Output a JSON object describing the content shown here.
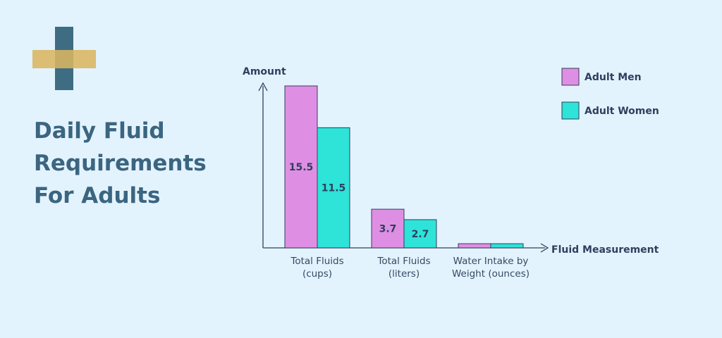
{
  "title_lines": [
    "Daily Fluid",
    "Requirements",
    "For Adults"
  ],
  "colors": {
    "background": "#e3f3fd",
    "title": "#3b6580",
    "logo_gold": "#d9b560",
    "logo_teal": "#3e6d83",
    "series_men": "#df8fe3",
    "series_women": "#2ee3d8",
    "axis": "#2f3f5e"
  },
  "logo_icon": "medical-cross-icon",
  "chart_data": {
    "type": "bar",
    "xlabel": "Fluid Measurement",
    "ylabel": "Amount",
    "categories": [
      [
        "Total Fluids",
        "(cups)"
      ],
      [
        "Total Fluids",
        "(liters)"
      ],
      [
        "Water Intake by",
        "Weight (ounces)"
      ]
    ],
    "series": [
      {
        "name": "Adult Men",
        "values": [
          15.5,
          3.7,
          0.4
        ],
        "labels": [
          "15.5",
          "3.7",
          ""
        ]
      },
      {
        "name": "Adult Women",
        "values": [
          11.5,
          2.7,
          0.4
        ],
        "labels": [
          "11.5",
          "2.7",
          ""
        ]
      }
    ],
    "ylim": [
      0,
      17.5
    ],
    "grid": false,
    "legend": "top-right"
  }
}
